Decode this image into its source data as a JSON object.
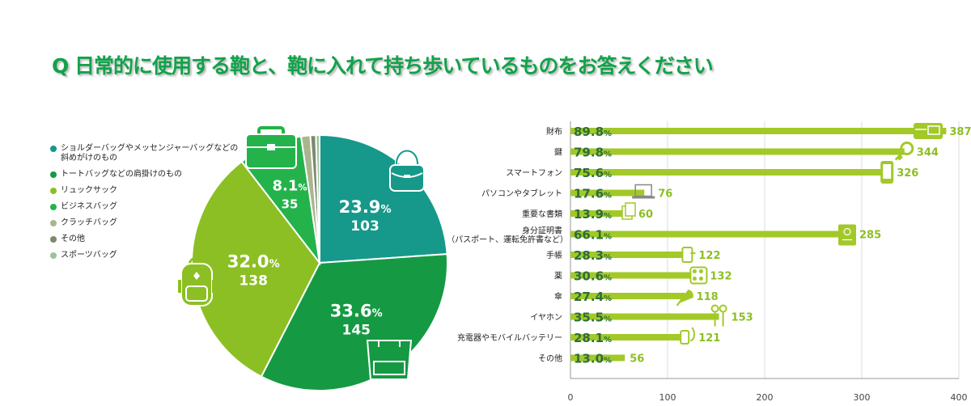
{
  "title": "Q 日常的に使用する鞄と、鞄に入れて持ち歩いているものをお答えください",
  "colors": {
    "teal": "#16998a",
    "green": "#159a43",
    "lime": "#8cbf24",
    "bright": "#24b34b",
    "bar": "#a2c928",
    "pctText": "#2f6e3a"
  },
  "chart_data": [
    {
      "type": "pie",
      "legend_position": "left",
      "slices": [
        {
          "name": "ショルダーバッグやメッセンジャーバッグなどの斜めがけのもの",
          "percent": "23.9",
          "count": "103",
          "value": 103,
          "color": "#16998a",
          "icon": "shoulder-bag-icon"
        },
        {
          "name": "トートバッグなどの肩掛けのもの",
          "percent": "33.6",
          "count": "145",
          "value": 145,
          "color": "#159a43",
          "icon": "tote-bag-icon"
        },
        {
          "name": "リュックサック",
          "percent": "32.0",
          "count": "138",
          "value": 138,
          "color": "#8cbf24",
          "icon": "backpack-icon"
        },
        {
          "name": "ビジネスバッグ",
          "percent": "8.1",
          "count": "35",
          "value": 35,
          "color": "#24b34b",
          "icon": "briefcase-icon"
        },
        {
          "name": "クラッチバッグ",
          "value": 5,
          "color": "#a9b58e"
        },
        {
          "name": "その他",
          "value": 3,
          "color": "#7a8a6a"
        },
        {
          "name": "スポーツバッグ",
          "value": 2,
          "color": "#9cc49a"
        }
      ],
      "percent_unit": "%"
    },
    {
      "type": "bar",
      "orientation": "horizontal",
      "xlim": [
        0,
        400
      ],
      "ticks": [
        0,
        100,
        200,
        300,
        400
      ],
      "grid": true,
      "percent_unit": "%",
      "categories": [
        {
          "label": "財布",
          "percent": "89.8",
          "value": 387,
          "icon": "wallet-icon"
        },
        {
          "label": "鍵",
          "percent": "79.8",
          "value": 344,
          "icon": "key-icon"
        },
        {
          "label": "スマートフォン",
          "percent": "75.6",
          "value": 326,
          "icon": "smartphone-icon"
        },
        {
          "label": "パソコンやタブレット",
          "percent": "17.6",
          "value": 76,
          "icon": "laptop-icon"
        },
        {
          "label": "重要な書類",
          "percent": "13.9",
          "value": 60,
          "icon": "documents-icon"
        },
        {
          "label": "身分証明書",
          "sublabel": "（パスポート、運転免許書など）",
          "percent": "66.1",
          "value": 285,
          "icon": "passport-icon"
        },
        {
          "label": "手帳",
          "percent": "28.3",
          "value": 122,
          "icon": "notebook-icon"
        },
        {
          "label": "薬",
          "percent": "30.6",
          "value": 132,
          "icon": "medicine-icon"
        },
        {
          "label": "傘",
          "percent": "27.4",
          "value": 118,
          "icon": "umbrella-icon"
        },
        {
          "label": "イヤホン",
          "percent": "35.5",
          "value": 153,
          "icon": "earphones-icon"
        },
        {
          "label": "充電器やモバイルバッテリー",
          "percent": "28.1",
          "value": 121,
          "icon": "battery-icon"
        },
        {
          "label": "その他",
          "percent": "13.0",
          "value": 56
        }
      ]
    }
  ]
}
